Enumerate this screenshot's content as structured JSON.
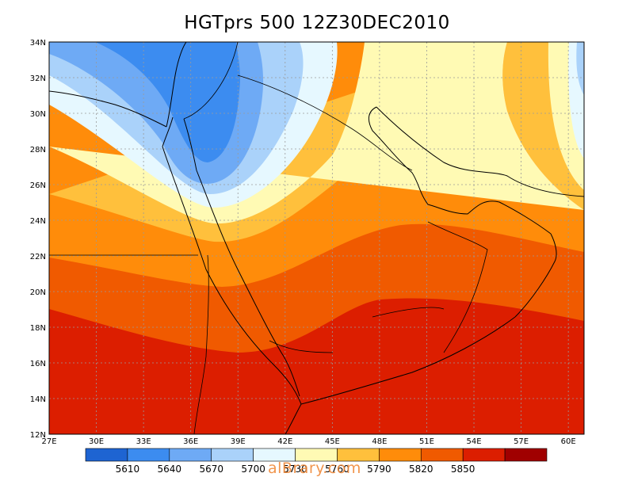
{
  "title": "HGTprs 500  12Z30DEC2010",
  "map": {
    "lon_range": [
      27,
      61
    ],
    "lat_range": [
      12,
      34
    ],
    "lon_ticks": [
      "27E",
      "30E",
      "33E",
      "36E",
      "39E",
      "42E",
      "45E",
      "48E",
      "51E",
      "54E",
      "57E",
      "60E"
    ],
    "lat_ticks": [
      "12N",
      "14N",
      "16N",
      "18N",
      "20N",
      "22N",
      "24N",
      "26N",
      "28N",
      "30N",
      "32N",
      "34N"
    ]
  },
  "colorbar": {
    "colors": [
      "#1e64d2",
      "#3c8cf0",
      "#6eaaf5",
      "#aad2fa",
      "#e6f8ff",
      "#fffab4",
      "#ffc03c",
      "#ff8c0a",
      "#f05a00",
      "#dc1e00",
      "#a00000"
    ],
    "labels": [
      "5610",
      "5640",
      "5670",
      "5700",
      "5730",
      "5760",
      "5790",
      "5820",
      "5850"
    ]
  },
  "watermark": "alBrary.com"
}
